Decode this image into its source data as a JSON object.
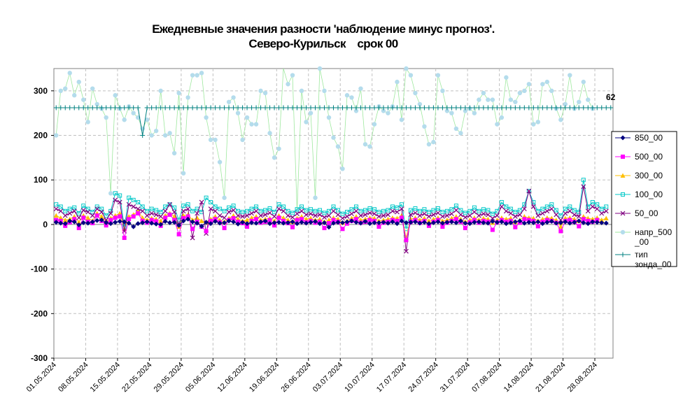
{
  "chart_data": {
    "type": "line",
    "title_line1": "Ежедневные значения разности 'наблюдение минус прогноз'.",
    "title_line2": "Северо-Курильск    срок 00",
    "ylim": [
      -300,
      350
    ],
    "yticks": [
      300,
      200,
      100,
      0,
      -100,
      -200,
      -300
    ],
    "ytick_labels": [
      "300",
      "200",
      "100",
      "0",
      "-100",
      "-200",
      "-300"
    ],
    "x_start": "01.05.2024",
    "x_end": "31.08.2024",
    "xtick_labels": [
      "01.05.2024",
      "08.05.2024",
      "15.05.2024",
      "22.05.2024",
      "29.05.2024",
      "05.06.2024",
      "12.06.2024",
      "19.06.2024",
      "26.06.2024",
      "03.07.2024",
      "10.07.2024",
      "17.07.2024",
      "24.07.2024",
      "31.07.2024",
      "07.08.2024",
      "14.08.2024",
      "21.08.2024",
      "28.08.2024"
    ],
    "annotation": "62",
    "grid": true,
    "legend_position": "right",
    "series": [
      {
        "name": "850_00",
        "color": "#000080",
        "marker": "diamond",
        "values": [
          5,
          3,
          2,
          8,
          6,
          -1,
          4,
          3,
          6,
          9,
          10,
          4,
          2,
          5,
          7,
          6,
          3,
          -5,
          2,
          4,
          6,
          3,
          1,
          0,
          7,
          4,
          5,
          -2,
          8,
          12,
          6,
          3,
          -4,
          5,
          2,
          7,
          3,
          4,
          8,
          6,
          1,
          5,
          2,
          4,
          3,
          6,
          8,
          2,
          4,
          5,
          3,
          4,
          6,
          2,
          5,
          3,
          5,
          7,
          2,
          4,
          -6,
          3,
          5,
          4,
          6,
          8,
          5,
          3,
          7,
          2,
          4,
          4,
          5,
          3,
          6,
          2,
          8,
          4,
          5,
          6,
          3,
          5,
          2,
          4,
          6,
          3,
          5,
          6,
          4,
          8,
          3,
          2,
          5,
          6,
          4,
          3,
          7,
          5,
          6,
          2,
          4,
          6,
          8,
          3,
          5,
          4,
          6,
          2,
          5,
          7,
          3,
          4,
          6,
          3,
          5,
          8,
          4,
          2,
          6,
          5,
          4,
          3
        ]
      },
      {
        "name": "500_00",
        "color": "#ff00ff",
        "marker": "square",
        "values": [
          10,
          8,
          -3,
          5,
          12,
          -8,
          15,
          6,
          3,
          20,
          8,
          -2,
          10,
          15,
          18,
          -30,
          12,
          18,
          25,
          8,
          4,
          10,
          7,
          -3,
          15,
          22,
          10,
          -22,
          14,
          18,
          -10,
          6,
          -5,
          -15,
          8,
          12,
          5,
          -8,
          10,
          14,
          6,
          3,
          -5,
          8,
          12,
          4,
          6,
          10,
          -2,
          15,
          8,
          3,
          -6,
          10,
          12,
          5,
          8,
          4,
          6,
          -8,
          3,
          10,
          6,
          -10,
          2,
          8,
          12,
          4,
          6,
          10,
          8,
          -5,
          4,
          6,
          10,
          8,
          15,
          -35,
          6,
          10,
          4,
          8,
          -3,
          6,
          10,
          -5,
          4,
          8,
          12,
          6,
          -8,
          5,
          10,
          4,
          8,
          6,
          -12,
          5,
          10,
          6,
          8,
          -6,
          4,
          12,
          10,
          8,
          -4,
          6,
          10,
          8,
          4,
          -15,
          8,
          10,
          6,
          -4,
          12,
          8,
          6,
          10
        ]
      },
      {
        "name": "300_00",
        "color": "#ffc000",
        "marker": "triangle",
        "values": [
          20,
          15,
          10,
          12,
          18,
          5,
          20,
          15,
          8,
          25,
          18,
          6,
          14,
          20,
          25,
          -10,
          18,
          22,
          30,
          15,
          10,
          14,
          12,
          8,
          20,
          25,
          18,
          -5,
          20,
          22,
          10,
          15,
          8,
          5,
          12,
          18,
          10,
          6,
          14,
          20,
          12,
          8,
          10,
          15,
          18,
          10,
          12,
          14,
          8,
          20,
          15,
          10,
          6,
          14,
          18,
          12,
          14,
          10,
          12,
          6,
          10,
          15,
          12,
          4,
          8,
          14,
          18,
          10,
          12,
          15,
          14,
          8,
          10,
          12,
          15,
          14,
          20,
          -30,
          12,
          15,
          10,
          14,
          8,
          12,
          15,
          8,
          10,
          14,
          18,
          12,
          6,
          10,
          15,
          10,
          14,
          12,
          4,
          10,
          15,
          12,
          14,
          6,
          10,
          18,
          15,
          14,
          8,
          12,
          15,
          14,
          10,
          -5,
          14,
          15,
          12,
          8,
          18,
          14,
          12,
          15,
          10,
          14
        ]
      },
      {
        "name": "100_00",
        "color": "#00c8c8",
        "marker": "square-open",
        "values": [
          45,
          40,
          30,
          35,
          38,
          25,
          42,
          35,
          28,
          40,
          35,
          20,
          30,
          70,
          65,
          -5,
          60,
          55,
          50,
          40,
          30,
          35,
          32,
          28,
          40,
          45,
          38,
          10,
          42,
          45,
          30,
          35,
          28,
          60,
          50,
          40,
          35,
          30,
          38,
          42,
          30,
          28,
          30,
          35,
          40,
          30,
          32,
          36,
          28,
          45,
          40,
          30,
          26,
          34,
          40,
          32,
          34,
          30,
          32,
          26,
          30,
          40,
          32,
          24,
          28,
          34,
          40,
          30,
          32,
          36,
          34,
          28,
          30,
          32,
          40,
          38,
          45,
          -10,
          32,
          36,
          30,
          34,
          28,
          32,
          36,
          28,
          30,
          34,
          42,
          32,
          26,
          30,
          38,
          30,
          34,
          32,
          24,
          30,
          50,
          40,
          35,
          28,
          32,
          45,
          75,
          50,
          30,
          35,
          40,
          45,
          32,
          20,
          35,
          40,
          32,
          28,
          100,
          40,
          50,
          45,
          35,
          40
        ]
      },
      {
        "name": "50_00",
        "color": "#800080",
        "marker": "cross",
        "values": [
          35,
          30,
          20,
          25,
          30,
          15,
          32,
          28,
          20,
          35,
          28,
          10,
          25,
          55,
          50,
          -15,
          45,
          40,
          35,
          30,
          20,
          25,
          22,
          18,
          30,
          45,
          28,
          0,
          30,
          35,
          -30,
          25,
          50,
          -20,
          35,
          30,
          20,
          15,
          28,
          32,
          20,
          18,
          20,
          25,
          30,
          20,
          22,
          26,
          18,
          35,
          30,
          20,
          16,
          24,
          30,
          22,
          24,
          20,
          22,
          16,
          20,
          30,
          22,
          14,
          18,
          24,
          30,
          20,
          22,
          26,
          24,
          18,
          20,
          22,
          30,
          28,
          35,
          -60,
          22,
          26,
          20,
          24,
          18,
          22,
          26,
          18,
          20,
          24,
          32,
          22,
          16,
          20,
          28,
          20,
          24,
          22,
          14,
          20,
          40,
          30,
          25,
          18,
          22,
          35,
          75,
          40,
          20,
          25,
          30,
          35,
          22,
          10,
          25,
          30,
          22,
          18,
          85,
          30,
          40,
          35,
          25,
          30
        ]
      },
      {
        "name": "напр_500\n_00",
        "color": "#b4dcec",
        "line_color": "#9ee89e",
        "marker": "circle",
        "values": [
          200,
          300,
          305,
          340,
          290,
          320,
          280,
          230,
          305,
          270,
          260,
          240,
          70,
          290,
          260,
          235,
          265,
          250,
          240,
          215,
          235,
          200,
          210,
          300,
          200,
          205,
          160,
          295,
          115,
          285,
          335,
          335,
          340,
          240,
          190,
          190,
          140,
          60,
          275,
          285,
          250,
          190,
          240,
          225,
          225,
          300,
          295,
          205,
          150,
          170,
          400,
          315,
          335,
          30,
          300,
          230,
          250,
          60,
          350,
          300,
          240,
          195,
          175,
          125,
          290,
          285,
          255,
          305,
          180,
          175,
          225,
          265,
          255,
          250,
          265,
          320,
          235,
          350,
          335,
          295,
          270,
          220,
          180,
          185,
          335,
          300,
          255,
          250,
          215,
          205,
          255,
          260,
          250,
          280,
          295,
          280,
          280,
          225,
          240,
          330,
          280,
          275,
          295,
          300,
          315,
          225,
          230,
          315,
          320,
          300,
          260,
          235,
          270,
          335,
          260,
          275,
          320,
          280,
          260
        ]
      },
      {
        "name": "тип\nзонда_00",
        "color": "#008080",
        "marker": "plus",
        "values": [
          262,
          262,
          262,
          262,
          262,
          262,
          262,
          262,
          262,
          262,
          262,
          262,
          262,
          262,
          262,
          262,
          262,
          262,
          262,
          200,
          262,
          262,
          262,
          262,
          262,
          262,
          262,
          262,
          262,
          262,
          262,
          262,
          262,
          262,
          262,
          262,
          262,
          262,
          262,
          262,
          262,
          262,
          262,
          262,
          262,
          262,
          262,
          262,
          262,
          262,
          262,
          262,
          262,
          262,
          262,
          262,
          262,
          262,
          262,
          262,
          262,
          262,
          262,
          262,
          262,
          262,
          262,
          262,
          262,
          262,
          262,
          262,
          262,
          262,
          262,
          262,
          262,
          262,
          262,
          262,
          262,
          262,
          262,
          262,
          262,
          262,
          262,
          262,
          262,
          262,
          262,
          262,
          262,
          262,
          262,
          262,
          262,
          262,
          262,
          262,
          262,
          262,
          262,
          262,
          262,
          262,
          262,
          262,
          262,
          262,
          262,
          262,
          262,
          262,
          262,
          262,
          262,
          262,
          262,
          262,
          262,
          262,
          262
        ]
      }
    ]
  }
}
